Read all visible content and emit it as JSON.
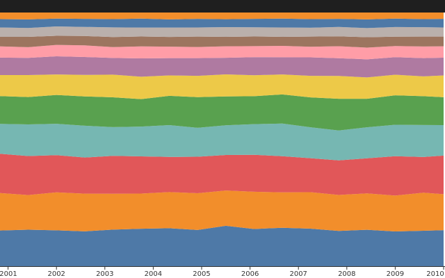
{
  "chart_data": {
    "type": "area",
    "stacked": true,
    "normalized": true,
    "xlabel": "",
    "ylabel": "",
    "x_range": [
      "2000-11",
      "2010-01"
    ],
    "x_ticks": [
      "2001",
      "2002",
      "2003",
      "2004",
      "2005",
      "2006",
      "2007",
      "2008",
      "2009",
      "2010"
    ],
    "ylim": [
      0,
      1
    ],
    "grid": false,
    "legend": "none",
    "background_colors": {
      "top_band": "#1f1f1f",
      "page": "#ffffff"
    },
    "x_dates": [
      "2000-11",
      "2001-06",
      "2002-01",
      "2002-08",
      "2003-03",
      "2003-10",
      "2004-05",
      "2004-12",
      "2005-07",
      "2006-02",
      "2006-09",
      "2007-04",
      "2007-11",
      "2008-06",
      "2009-01",
      "2009-08",
      "2010-01"
    ],
    "series": [
      {
        "color": "#4e79a7",
        "values": [
          0.141,
          0.144,
          0.142,
          0.138,
          0.145,
          0.147,
          0.149,
          0.143,
          0.158,
          0.146,
          0.152,
          0.148,
          0.139,
          0.143,
          0.137,
          0.14,
          0.142
        ]
      },
      {
        "color": "#f28e2b",
        "values": [
          0.148,
          0.137,
          0.15,
          0.149,
          0.142,
          0.138,
          0.142,
          0.145,
          0.138,
          0.146,
          0.14,
          0.144,
          0.142,
          0.143,
          0.141,
          0.15,
          0.142
        ]
      },
      {
        "color": "#e15759",
        "values": [
          0.155,
          0.154,
          0.147,
          0.143,
          0.15,
          0.146,
          0.138,
          0.144,
          0.139,
          0.145,
          0.143,
          0.134,
          0.136,
          0.138,
          0.155,
          0.141,
          0.152
        ]
      },
      {
        "color": "#76b7b2",
        "values": [
          0.118,
          0.125,
          0.124,
          0.126,
          0.114,
          0.117,
          0.125,
          0.114,
          0.116,
          0.12,
          0.129,
          0.122,
          0.118,
          0.122,
          0.124,
          0.126,
          0.12
        ]
      },
      {
        "color": "#59a14f",
        "values": [
          0.11,
          0.108,
          0.114,
          0.116,
          0.118,
          0.108,
          0.115,
          0.121,
          0.113,
          0.11,
          0.115,
          0.118,
          0.125,
          0.112,
          0.116,
          0.114,
          0.11
        ]
      },
      {
        "color": "#edc948",
        "values": [
          0.083,
          0.087,
          0.081,
          0.085,
          0.09,
          0.088,
          0.08,
          0.084,
          0.086,
          0.082,
          0.079,
          0.085,
          0.09,
          0.084,
          0.081,
          0.078,
          0.086
        ]
      },
      {
        "color": "#af7aa1",
        "values": [
          0.069,
          0.068,
          0.072,
          0.071,
          0.066,
          0.072,
          0.068,
          0.07,
          0.065,
          0.071,
          0.068,
          0.073,
          0.07,
          0.071,
          0.069,
          0.072,
          0.07
        ]
      },
      {
        "color": "#ff9da7",
        "values": [
          0.044,
          0.042,
          0.045,
          0.046,
          0.043,
          0.047,
          0.045,
          0.044,
          0.045,
          0.043,
          0.045,
          0.042,
          0.047,
          0.046,
          0.044,
          0.046,
          0.045
        ]
      },
      {
        "color": "#9c755f",
        "values": [
          0.038,
          0.041,
          0.036,
          0.037,
          0.04,
          0.039,
          0.038,
          0.041,
          0.037,
          0.038,
          0.036,
          0.04,
          0.039,
          0.041,
          0.037,
          0.039,
          0.038
        ]
      },
      {
        "color": "#bab0ac",
        "values": [
          0.037,
          0.035,
          0.037,
          0.036,
          0.038,
          0.035,
          0.037,
          0.036,
          0.038,
          0.036,
          0.037,
          0.035,
          0.037,
          0.036,
          0.038,
          0.037,
          0.036
        ]
      },
      {
        "color": "#4e79a7",
        "values": [
          0.033,
          0.034,
          0.031,
          0.032,
          0.033,
          0.035,
          0.032,
          0.034,
          0.031,
          0.033,
          0.035,
          0.034,
          0.032,
          0.034,
          0.033,
          0.032,
          0.034
        ]
      },
      {
        "color": "#f28e2b",
        "values": [
          0.026,
          0.027,
          0.024,
          0.025,
          0.026,
          0.024,
          0.027,
          0.025,
          0.026,
          0.025,
          0.024,
          0.026,
          0.025,
          0.027,
          0.024,
          0.026,
          0.025
        ]
      }
    ]
  }
}
